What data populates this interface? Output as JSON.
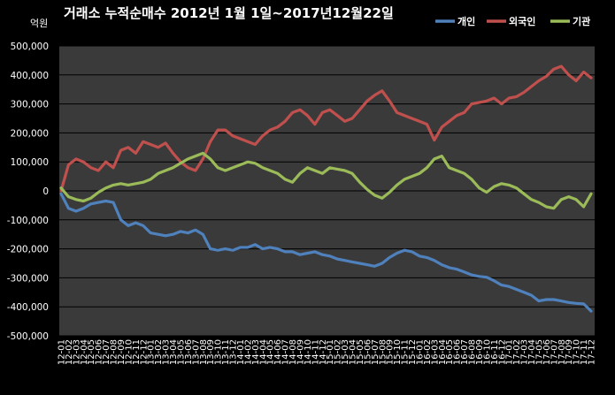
{
  "chart_data": {
    "type": "line",
    "title": "거래소 누적순매수 2012년 1월 1일~2017년12월22일",
    "ylabel": "억원",
    "xlabel": "",
    "ylim": [
      -500000,
      500000
    ],
    "yticks": [
      500000,
      400000,
      300000,
      200000,
      100000,
      0,
      -100000,
      -200000,
      -300000,
      -400000,
      -500000
    ],
    "ytick_labels": [
      "500,000",
      "400,000",
      "300,000",
      "200,000",
      "100,000",
      "0",
      "-100,000",
      "-200,000",
      "-300,000",
      "-400,000",
      "-500,000"
    ],
    "grid": true,
    "legend_position": "top-right",
    "background": "#3a3a3a",
    "categories": [
      "12-01",
      "12-02",
      "12-03",
      "12-04",
      "12-05",
      "12-06",
      "12-07",
      "12-08",
      "12-09",
      "12-10",
      "12-11",
      "12-12",
      "13-01",
      "13-02",
      "13-03",
      "13-04",
      "13-05",
      "13-06",
      "13-07",
      "13-08",
      "13-09",
      "13-10",
      "13-11",
      "13-12",
      "14-01",
      "14-02",
      "14-03",
      "14-04",
      "14-05",
      "14-06",
      "14-07",
      "14-08",
      "14-09",
      "14-10",
      "14-11",
      "14-12",
      "15-01",
      "15-02",
      "15-03",
      "15-04",
      "15-05",
      "15-06",
      "15-07",
      "15-08",
      "15-09",
      "15-10",
      "15-11",
      "15-12",
      "16-01",
      "16-02",
      "16-03",
      "16-04",
      "16-05",
      "16-06",
      "16-07",
      "16-08",
      "16-09",
      "16-10",
      "16-11",
      "16-12",
      "17-01",
      "17-02",
      "17-03",
      "17-04",
      "17-05",
      "17-06",
      "17-07",
      "17-08",
      "17-09",
      "17-10",
      "17-11",
      "17-12"
    ],
    "series": [
      {
        "name": "개인",
        "color": "#4f81bd",
        "values": [
          -10000,
          -60000,
          -70000,
          -60000,
          -45000,
          -40000,
          -35000,
          -40000,
          -100000,
          -120000,
          -110000,
          -120000,
          -145000,
          -150000,
          -155000,
          -150000,
          -140000,
          -145000,
          -135000,
          -150000,
          -200000,
          -205000,
          -200000,
          -205000,
          -195000,
          -195000,
          -185000,
          -200000,
          -195000,
          -200000,
          -210000,
          -210000,
          -220000,
          -215000,
          -210000,
          -220000,
          -225000,
          -235000,
          -240000,
          -245000,
          -250000,
          -255000,
          -260000,
          -250000,
          -230000,
          -215000,
          -205000,
          -210000,
          -225000,
          -230000,
          -240000,
          -255000,
          -265000,
          -270000,
          -280000,
          -290000,
          -295000,
          -298000,
          -310000,
          -325000,
          -330000,
          -340000,
          -350000,
          -360000,
          -380000,
          -375000,
          -375000,
          -380000,
          -385000,
          -388000,
          -390000,
          -415000
        ]
      },
      {
        "name": "외국인",
        "color": "#c0504d",
        "values": [
          0,
          90000,
          110000,
          100000,
          80000,
          70000,
          100000,
          80000,
          140000,
          150000,
          130000,
          170000,
          160000,
          150000,
          165000,
          130000,
          100000,
          80000,
          70000,
          110000,
          170000,
          210000,
          210000,
          190000,
          180000,
          170000,
          160000,
          190000,
          210000,
          220000,
          240000,
          270000,
          280000,
          260000,
          230000,
          270000,
          280000,
          260000,
          240000,
          250000,
          280000,
          310000,
          330000,
          345000,
          310000,
          270000,
          260000,
          250000,
          240000,
          230000,
          175000,
          220000,
          240000,
          260000,
          270000,
          300000,
          305000,
          310000,
          320000,
          300000,
          320000,
          325000,
          340000,
          360000,
          380000,
          395000,
          420000,
          430000,
          400000,
          380000,
          410000,
          390000
        ]
      },
      {
        "name": "기관",
        "color": "#9bbb59",
        "values": [
          10000,
          -20000,
          -30000,
          -35000,
          -25000,
          -5000,
          10000,
          20000,
          25000,
          20000,
          25000,
          30000,
          40000,
          60000,
          70000,
          80000,
          95000,
          110000,
          120000,
          130000,
          110000,
          80000,
          70000,
          80000,
          90000,
          100000,
          95000,
          80000,
          70000,
          60000,
          40000,
          30000,
          60000,
          80000,
          70000,
          60000,
          80000,
          75000,
          70000,
          60000,
          30000,
          5000,
          -15000,
          -25000,
          -5000,
          20000,
          40000,
          50000,
          60000,
          80000,
          110000,
          120000,
          80000,
          70000,
          60000,
          40000,
          10000,
          -5000,
          15000,
          25000,
          20000,
          10000,
          -10000,
          -30000,
          -40000,
          -55000,
          -60000,
          -30000,
          -20000,
          -30000,
          -55000,
          -10000
        ]
      }
    ]
  }
}
